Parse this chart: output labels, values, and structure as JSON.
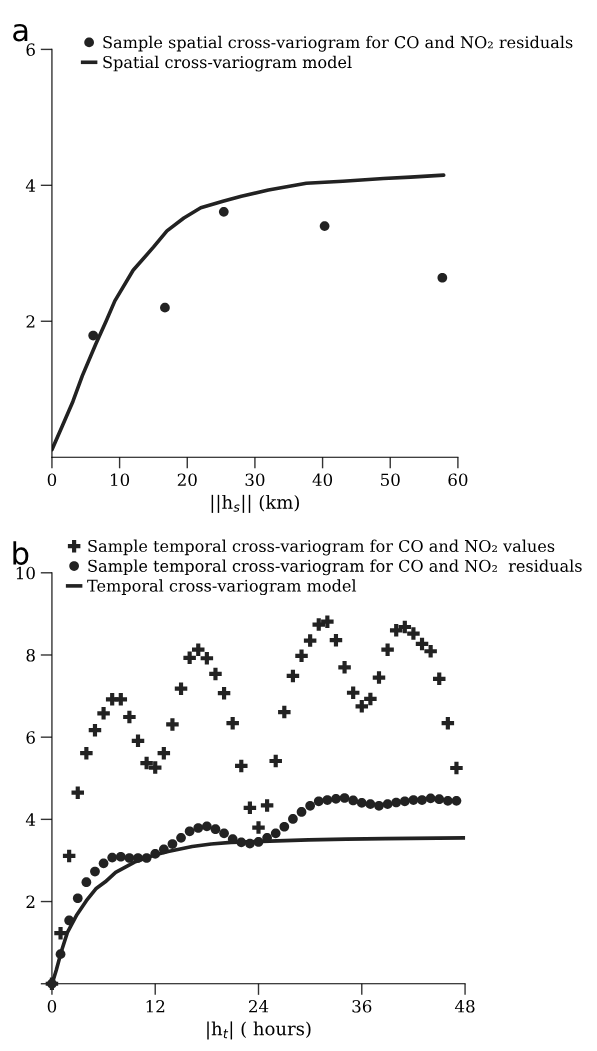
{
  "chart_data": [
    {
      "type": "scatter",
      "title": "a",
      "xlabel": "||h$_{s}$|| (km)",
      "xlim": [
        0,
        60
      ],
      "xticks": [
        0,
        10,
        20,
        30,
        40,
        50,
        60
      ],
      "ylim": [
        0,
        6
      ],
      "yticks": [
        2,
        4,
        6
      ],
      "legend": "top right",
      "grid": false,
      "series": [
        {
          "name": "Sample spatial cross-variogram for CO and NO₂ residuals",
          "marker": "circle",
          "color": "#222222",
          "x": [
            6.1,
            16.7,
            25.4,
            40.3,
            57.7
          ],
          "values": [
            1.79,
            2.2,
            3.61,
            3.4,
            2.64
          ]
        },
        {
          "name": "Spatial cross-variogram model",
          "type": "line",
          "marker": "none",
          "line_style": "solid",
          "color": "#222222",
          "x": [
            0,
            1.5,
            3.1,
            4.5,
            6.5,
            8,
            9.3,
            12,
            15,
            17,
            19.5,
            22,
            25.4,
            28,
            32,
            37.6,
            43,
            49,
            53,
            57.9
          ],
          "values": [
            0.11,
            0.45,
            0.82,
            1.2,
            1.67,
            2.0,
            2.3,
            2.75,
            3.09,
            3.33,
            3.52,
            3.67,
            3.77,
            3.84,
            3.93,
            4.03,
            4.06,
            4.1,
            4.12,
            4.15
          ]
        }
      ]
    },
    {
      "type": "scatter",
      "title": "b",
      "xlabel": "|h$_{t}$| ( hours)",
      "xlim": [
        0,
        48
      ],
      "xticks": [
        0,
        12,
        24,
        36,
        48
      ],
      "ylim": [
        0,
        10
      ],
      "yticks": [
        {
          "value": 0,
          "label": null
        },
        2,
        4,
        6,
        8,
        10
      ],
      "legend": "top right",
      "grid": false,
      "series": [
        {
          "name": "Sample temporal cross-variogram for CO and NO₂ values",
          "marker": "cross",
          "color": "#222222",
          "x": [
            0,
            1,
            2,
            3,
            4,
            5,
            6,
            7,
            8,
            9,
            10,
            11,
            12,
            13,
            14,
            15,
            16,
            17,
            18,
            19,
            20,
            21,
            22,
            23,
            24,
            25,
            26,
            27,
            28,
            29,
            30,
            31,
            32,
            33,
            34,
            35,
            36,
            37,
            38,
            39,
            40,
            41,
            42,
            43,
            44,
            45,
            46,
            47
          ],
          "values": [
            0,
            1.23,
            3.11,
            4.65,
            5.61,
            6.17,
            6.58,
            6.92,
            6.92,
            6.49,
            5.91,
            5.37,
            5.26,
            5.61,
            6.31,
            7.18,
            7.93,
            8.13,
            7.92,
            7.54,
            7.07,
            6.34,
            5.3,
            4.28,
            3.8,
            4.34,
            5.42,
            6.61,
            7.49,
            7.98,
            8.35,
            8.74,
            8.81,
            8.36,
            7.7,
            7.08,
            6.75,
            6.93,
            7.45,
            8.13,
            8.6,
            8.68,
            8.52,
            8.27,
            8.09,
            7.42,
            6.34,
            5.25
          ]
        },
        {
          "name": "Sample temporal cross-variogram for CO and NO₂  residuals",
          "marker": "circle",
          "color": "#222222",
          "x": [
            0,
            1,
            2,
            3,
            4,
            5,
            6,
            7,
            8,
            9,
            10,
            11,
            12,
            13,
            14,
            15,
            16,
            17,
            18,
            19,
            20,
            21,
            22,
            23,
            24,
            25,
            26,
            27,
            28,
            29,
            30,
            31,
            32,
            33,
            34,
            35,
            36,
            37,
            38,
            39,
            40,
            41,
            42,
            43,
            44,
            45,
            46,
            47
          ],
          "values": [
            0,
            0.72,
            1.54,
            2.08,
            2.47,
            2.73,
            2.93,
            3.07,
            3.09,
            3.06,
            3.06,
            3.06,
            3.16,
            3.27,
            3.4,
            3.55,
            3.71,
            3.79,
            3.83,
            3.76,
            3.66,
            3.52,
            3.44,
            3.41,
            3.45,
            3.55,
            3.66,
            3.82,
            4.01,
            4.18,
            4.33,
            4.44,
            4.47,
            4.5,
            4.52,
            4.46,
            4.4,
            4.37,
            4.33,
            4.37,
            4.41,
            4.44,
            4.47,
            4.47,
            4.51,
            4.49,
            4.45,
            4.45
          ]
        },
        {
          "name": "Temporal cross-variogram model",
          "type": "line",
          "marker": "none",
          "line_style": "solid",
          "color": "#222222",
          "x": [
            0,
            0.2,
            0.5,
            1.1,
            1.8,
            2.9,
            4,
            5.1,
            6.2,
            7.4,
            9.6,
            11.9,
            13.5,
            16.3,
            18.5,
            20.8,
            25.3,
            29.8,
            34.2,
            38.7,
            48
          ],
          "values": [
            0,
            0.12,
            0.33,
            0.79,
            1.25,
            1.68,
            2.02,
            2.31,
            2.48,
            2.71,
            2.96,
            3.13,
            3.22,
            3.34,
            3.4,
            3.44,
            3.47,
            3.5,
            3.52,
            3.53,
            3.55
          ]
        }
      ]
    }
  ]
}
